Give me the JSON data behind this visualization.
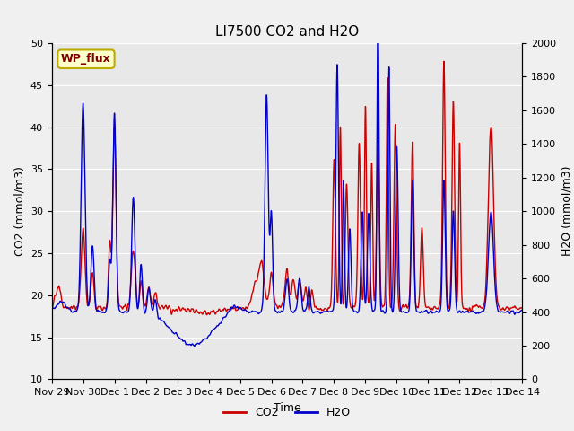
{
  "title": "LI7500 CO2 and H2O",
  "xlabel": "Time",
  "ylabel_left": "CO2 (mmol/m3)",
  "ylabel_right": "H2O (mmol/m3)",
  "ylim_left": [
    10,
    50
  ],
  "ylim_right": [
    0,
    2000
  ],
  "yticks_left": [
    10,
    15,
    20,
    25,
    30,
    35,
    40,
    45,
    50
  ],
  "yticks_right": [
    0,
    200,
    400,
    600,
    800,
    1000,
    1200,
    1400,
    1600,
    1800,
    2000
  ],
  "xtick_labels": [
    "Nov 29",
    "Nov 30",
    "Dec 1",
    "Dec 2",
    "Dec 3",
    "Dec 4",
    "Dec 5",
    "Dec 6",
    "Dec 7",
    "Dec 8",
    "Dec 9",
    "Dec 10",
    "Dec 11",
    "Dec 12",
    "Dec 13",
    "Dec 14"
  ],
  "co2_color": "#cc0000",
  "h2o_color": "#0000cc",
  "fig_bg_color": "#f0f0f0",
  "plot_bg_color": "#e8e8e8",
  "legend_label_co2": "CO2",
  "legend_label_h2o": "H2O",
  "site_label": "WP_flux",
  "site_label_bg": "#ffffcc",
  "site_label_border": "#bbaa00",
  "site_label_color": "#800000",
  "title_fontsize": 11,
  "axis_fontsize": 9,
  "tick_fontsize": 8,
  "legend_fontsize": 9,
  "line_width": 1.0
}
